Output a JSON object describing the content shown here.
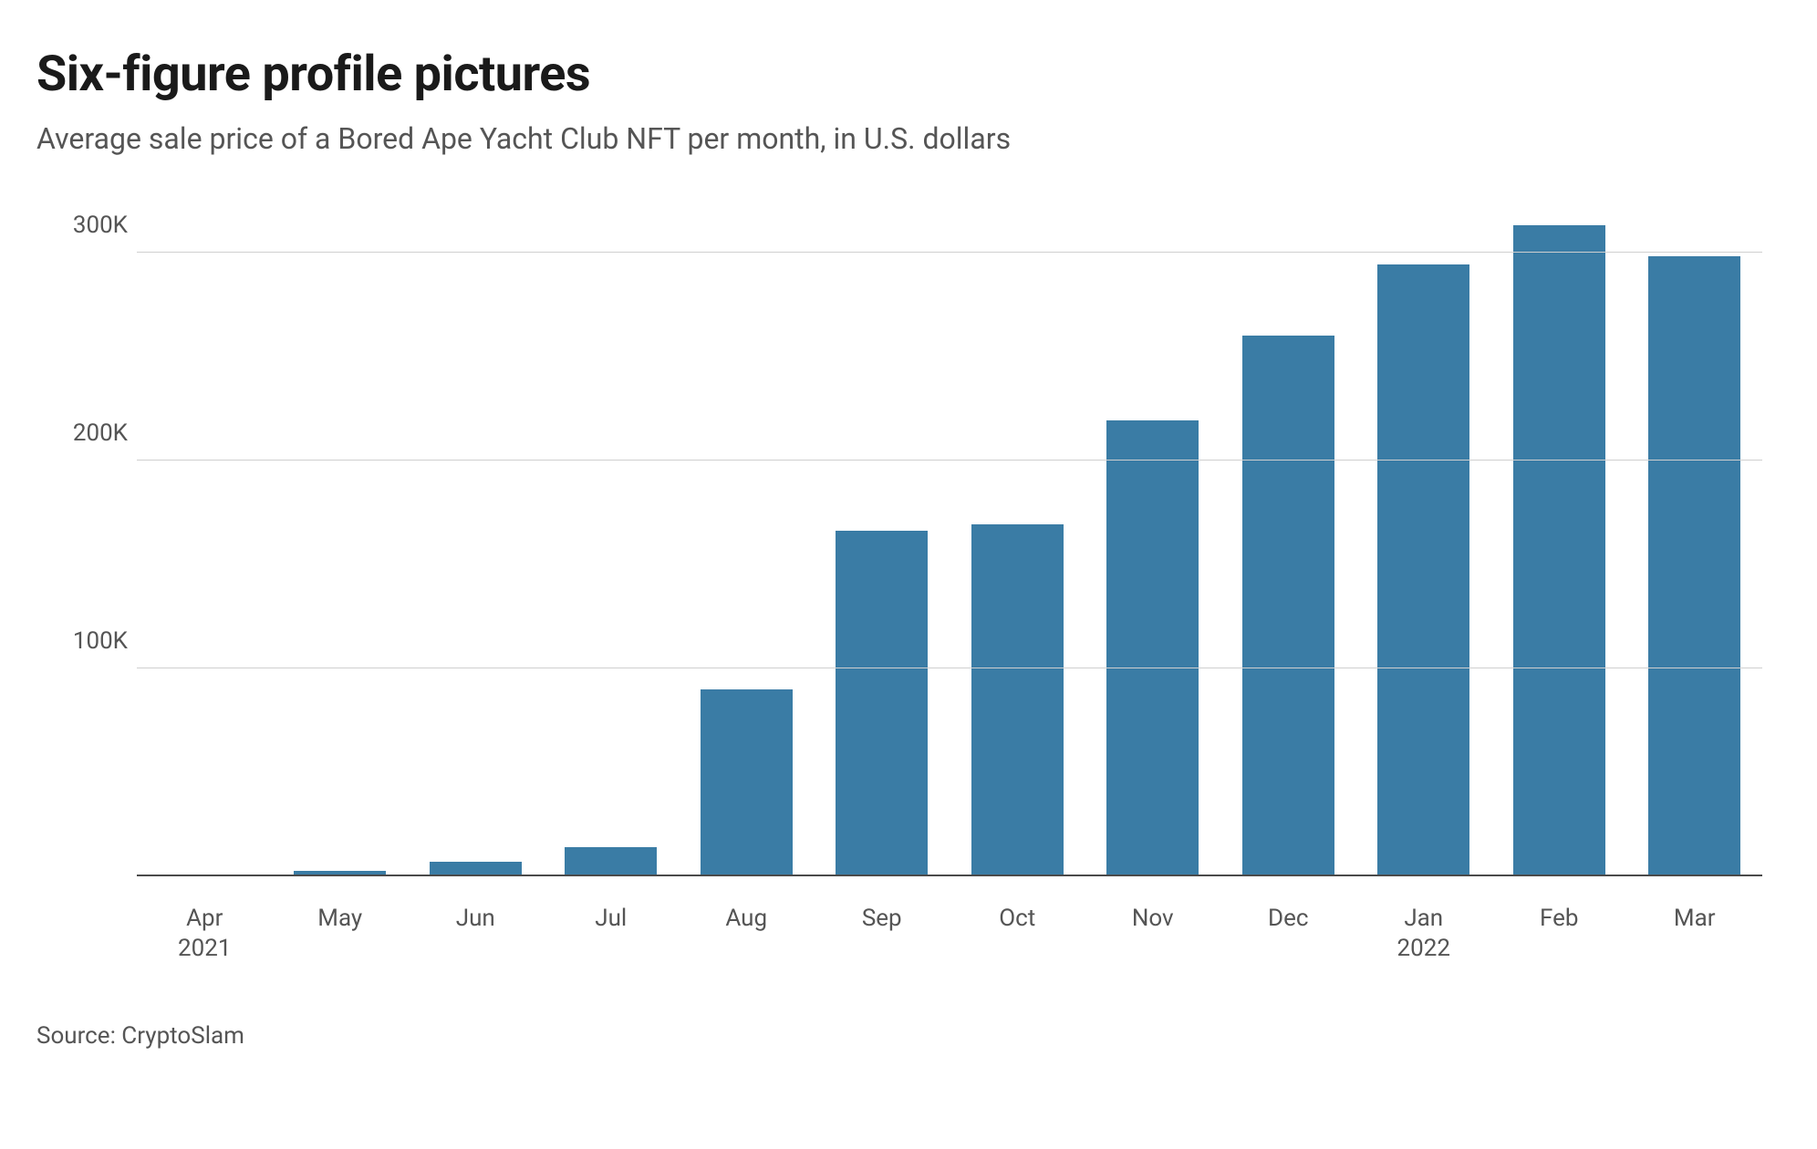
{
  "header": {
    "title": "Six-figure profile pictures",
    "subtitle": "Average sale price of a Bored Ape Yacht Club NFT per month, in U.S. dollars"
  },
  "chart": {
    "type": "bar",
    "categories": [
      "Apr\n2021",
      "May",
      "Jun",
      "Jul",
      "Aug",
      "Sep",
      "Oct",
      "Nov",
      "Dec",
      "Jan\n2022",
      "Feb",
      "Mar"
    ],
    "values": [
      700,
      2500,
      7000,
      14000,
      90000,
      166000,
      169000,
      219000,
      260000,
      294000,
      313000,
      298000
    ],
    "bar_color": "#3a7ca5",
    "bar_width": 0.68,
    "ylim": [
      0,
      320000
    ],
    "yticks": [
      100000,
      200000,
      300000
    ],
    "ytick_labels": [
      "100K",
      "200K",
      "300K"
    ],
    "grid_color": "#cfcfcf",
    "baseline_color": "#4a4a4a",
    "background_color": "#ffffff",
    "title_fontsize": 54,
    "subtitle_fontsize": 32,
    "axis_label_fontsize": 26,
    "axis_label_color": "#555555"
  },
  "footer": {
    "source": "Source: CryptoSlam"
  }
}
